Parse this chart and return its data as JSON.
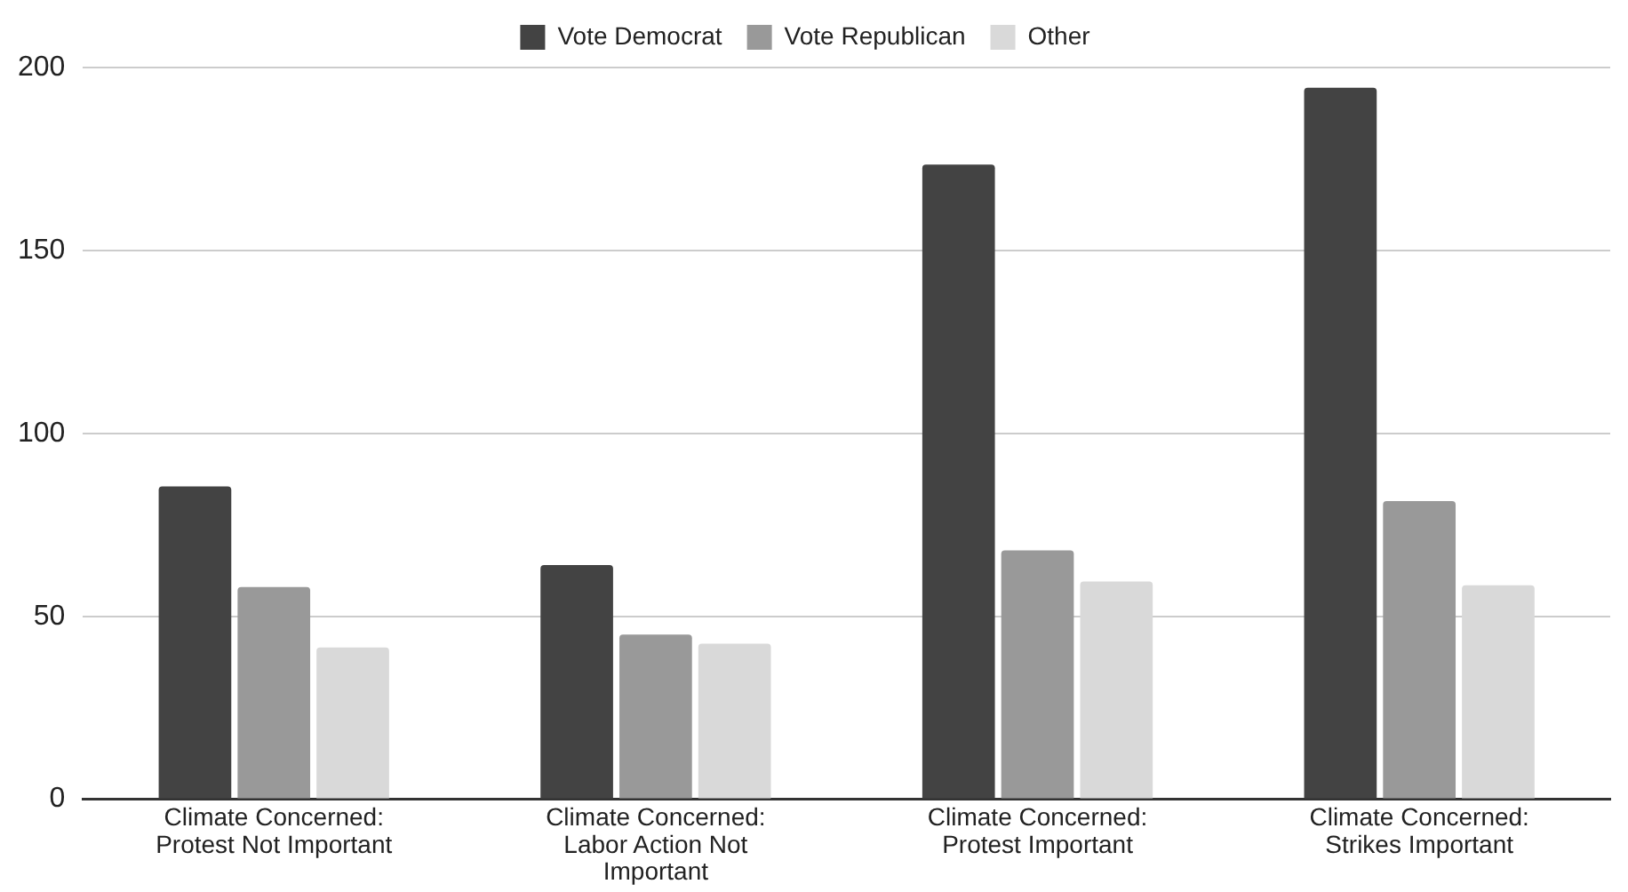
{
  "chart_data": {
    "type": "bar",
    "categories": [
      "Climate Concerned: Protest Not Important",
      "Climate Concerned: Labor Action Not Important",
      "Climate Concerned: Protest Important",
      "Climate Concerned: Strikes Important"
    ],
    "series": [
      {
        "name": "Vote Democrat",
        "color": "#434343",
        "values": [
          85.5,
          64,
          173.5,
          194.5
        ]
      },
      {
        "name": "Vote Republican",
        "color": "#999999",
        "values": [
          58,
          45,
          68,
          81.5
        ]
      },
      {
        "name": "Other",
        "color": "#d9d9d9",
        "values": [
          41.5,
          42.5,
          59.5,
          58.5
        ]
      }
    ],
    "ylim": [
      0,
      200
    ],
    "yticks": [
      0,
      50,
      100,
      150,
      200
    ],
    "grid": "y",
    "legend": "top"
  }
}
